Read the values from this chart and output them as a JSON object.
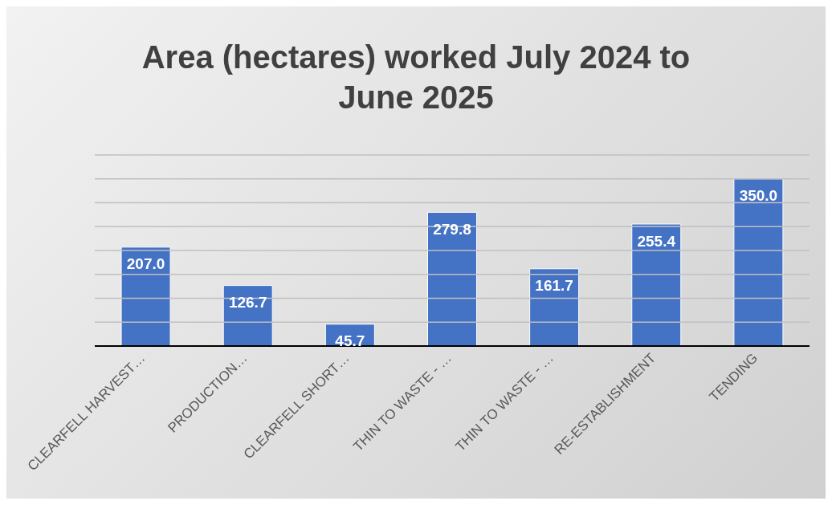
{
  "chart_data": {
    "type": "bar",
    "title": "Area (hectares) worked July 2024 to June 2025",
    "categories": [
      "CLEARFELL HARVEST…",
      "PRODUCTION…",
      "CLEARFELL SHORT…",
      "THIN TO WASTE - …",
      "THIN TO WASTE - …",
      "RE-ESTABLISHMENT",
      "TENDING"
    ],
    "values": [
      207.0,
      126.7,
      45.7,
      279.8,
      161.7,
      255.4,
      350.0
    ],
    "color": "#4472c4",
    "ylim": [
      0,
      400
    ],
    "yticks": [
      {
        "value": 0,
        "label": null
      },
      {
        "value": 50,
        "label": null
      },
      {
        "value": 100,
        "label": null
      },
      {
        "value": 150,
        "label": null
      },
      {
        "value": 200,
        "label": null
      },
      {
        "value": 250,
        "label": null
      },
      {
        "value": 300,
        "label": null
      },
      {
        "value": 350,
        "label": null
      },
      {
        "value": 400,
        "label": null
      }
    ],
    "value_labels": [
      "207.0",
      "126.7",
      "45.7",
      "279.8",
      "161.7",
      "255.4",
      "350.0"
    ],
    "tick_labels": "x",
    "grid": "y"
  }
}
